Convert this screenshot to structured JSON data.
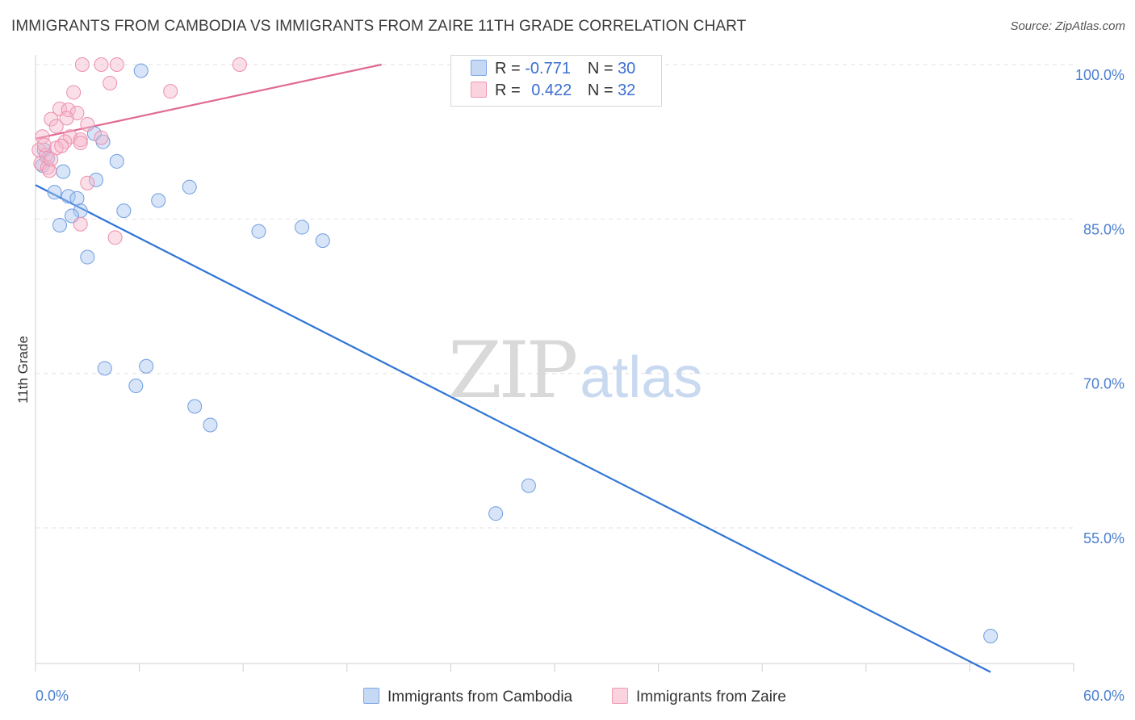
{
  "title": "IMMIGRANTS FROM CAMBODIA VS IMMIGRANTS FROM ZAIRE 11TH GRADE CORRELATION CHART",
  "source": "Source: ZipAtlas.com",
  "watermark": {
    "zip": "ZIP",
    "atlas": "atlas"
  },
  "legend": {
    "rows": [
      {
        "r_label": "R =",
        "r_value": "-0.771",
        "n_label": "N =",
        "n_value": "30",
        "color": "#a9c6f0"
      },
      {
        "r_label": "R =",
        "r_value": "0.422",
        "n_label": "N =",
        "n_value": "32",
        "color": "#f7b8cb"
      }
    ]
  },
  "bottom_legend": [
    {
      "label": "Immigrants from Cambodia",
      "color": "#a9c6f0"
    },
    {
      "label": "Immigrants from Zaire",
      "color": "#f7b8cb"
    }
  ],
  "chart_data": {
    "type": "scatter",
    "title": "IMMIGRANTS FROM CAMBODIA VS IMMIGRANTS FROM ZAIRE 11TH GRADE CORRELATION CHART",
    "xlabel": "",
    "ylabel": "11th Grade",
    "xlim": [
      0,
      60
    ],
    "ylim": [
      41,
      101
    ],
    "x_tick_labels": [
      "0.0%",
      "60.0%"
    ],
    "y_ticks": [
      100,
      85,
      70,
      55
    ],
    "y_tick_labels": [
      "100.0%",
      "85.0%",
      "70.0%",
      "55.0%"
    ],
    "grid": true,
    "legend_position": "top-center",
    "series": [
      {
        "name": "Immigrants from Cambodia",
        "color": "#a9c6f0",
        "stroke": "#6e9ee0",
        "trend_color": "#2f75d6",
        "trend": {
          "x": [
            0,
            55.2
          ],
          "y": [
            88.3,
            41.0
          ]
        },
        "points": [
          [
            6.1,
            99.4
          ],
          [
            0.5,
            91.7
          ],
          [
            0.7,
            90.9
          ],
          [
            0.4,
            90.2
          ],
          [
            1.6,
            89.6
          ],
          [
            3.4,
            93.3
          ],
          [
            3.9,
            92.5
          ],
          [
            4.7,
            90.6
          ],
          [
            3.5,
            88.8
          ],
          [
            1.1,
            87.6
          ],
          [
            1.9,
            87.2
          ],
          [
            2.4,
            87.0
          ],
          [
            7.1,
            86.8
          ],
          [
            8.9,
            88.1
          ],
          [
            5.1,
            85.8
          ],
          [
            2.6,
            85.8
          ],
          [
            2.1,
            85.3
          ],
          [
            1.4,
            84.4
          ],
          [
            12.9,
            83.8
          ],
          [
            15.4,
            84.2
          ],
          [
            16.6,
            82.9
          ],
          [
            3.0,
            81.3
          ],
          [
            4.0,
            70.5
          ],
          [
            6.4,
            70.7
          ],
          [
            5.8,
            68.8
          ],
          [
            9.2,
            66.8
          ],
          [
            10.1,
            65.0
          ],
          [
            26.6,
            56.4
          ],
          [
            28.5,
            59.1
          ],
          [
            55.2,
            44.5
          ]
        ]
      },
      {
        "name": "Immigrants from Zaire",
        "color": "#f7b8cb",
        "stroke": "#ec8fab",
        "trend_color": "#e06a92",
        "trend": {
          "x": [
            0,
            20.0
          ],
          "y": [
            92.8,
            100.0
          ]
        },
        "points": [
          [
            2.7,
            100.0
          ],
          [
            3.8,
            100.0
          ],
          [
            4.7,
            100.0
          ],
          [
            11.8,
            100.0
          ],
          [
            4.3,
            98.2
          ],
          [
            2.2,
            97.3
          ],
          [
            7.8,
            97.4
          ],
          [
            1.4,
            95.7
          ],
          [
            1.9,
            95.6
          ],
          [
            0.9,
            94.7
          ],
          [
            2.4,
            95.3
          ],
          [
            1.8,
            94.8
          ],
          [
            1.2,
            94.0
          ],
          [
            3.0,
            94.2
          ],
          [
            2.0,
            93.0
          ],
          [
            2.6,
            92.7
          ],
          [
            0.4,
            93.0
          ],
          [
            3.8,
            92.9
          ],
          [
            1.7,
            92.5
          ],
          [
            2.6,
            92.4
          ],
          [
            1.2,
            91.9
          ],
          [
            0.2,
            91.7
          ],
          [
            0.6,
            91.2
          ],
          [
            0.3,
            90.4
          ],
          [
            0.7,
            90.0
          ],
          [
            0.8,
            89.7
          ],
          [
            3.0,
            88.5
          ],
          [
            2.6,
            84.5
          ],
          [
            4.6,
            83.2
          ],
          [
            0.5,
            92.2
          ],
          [
            1.5,
            92.1
          ],
          [
            0.9,
            90.8
          ]
        ]
      }
    ]
  }
}
